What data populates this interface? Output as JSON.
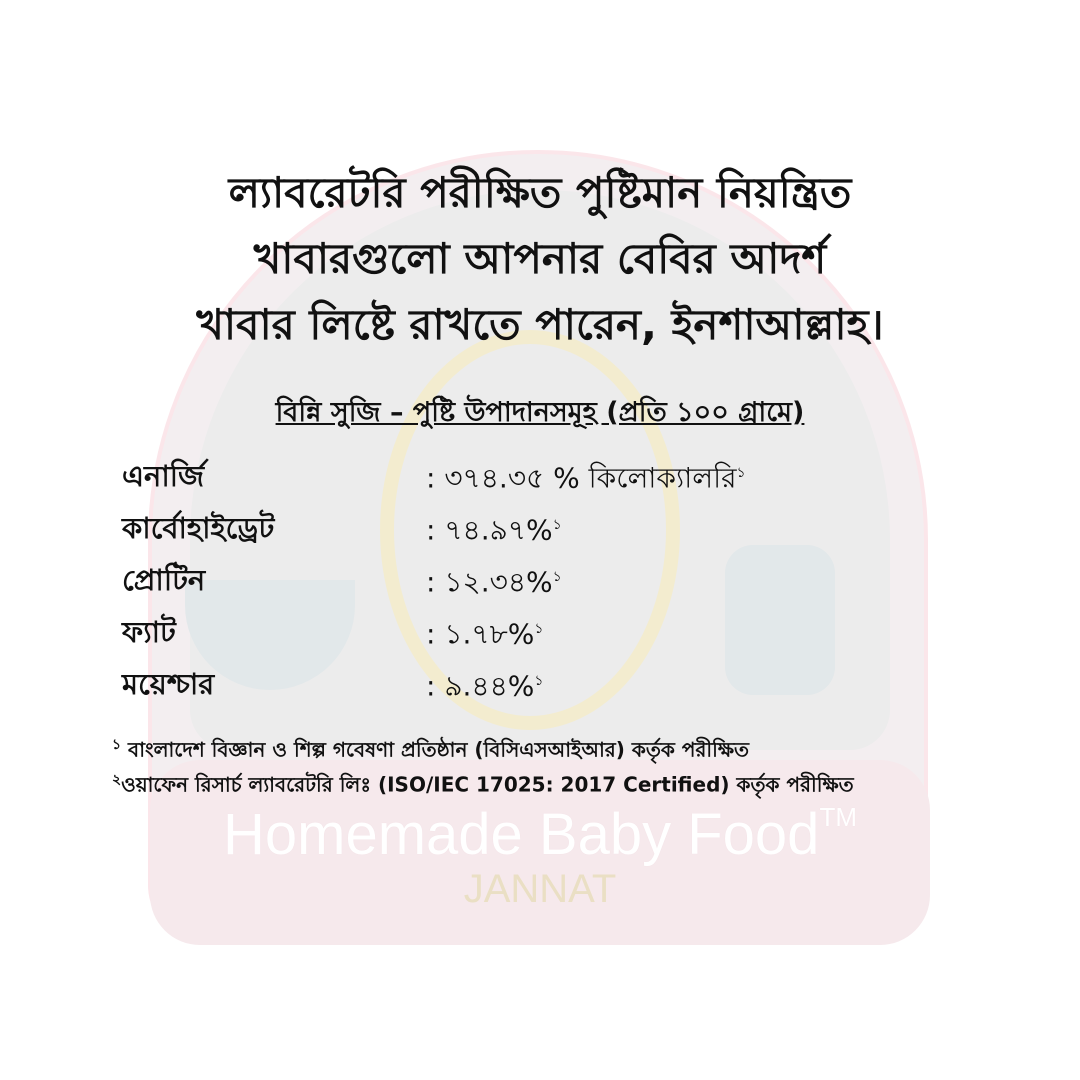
{
  "headline": [
    "ল্যাবরেটরি পরীক্ষিত পুষ্টিমান নিয়ন্ত্রিত",
    "খাবারগুলো আপনার বেবির আদর্শ",
    "খাবার লিষ্টে রাখতে পারেন, ইনশাআল্লাহ।"
  ],
  "subtitle": "বিন্নি সুজি – পুষ্টি উপাদানসমূহ (প্রতি ১০০ গ্রামে)",
  "nutrients": [
    {
      "name": "এনার্জি",
      "value": ": ৩৭৪.৩৫ % কিলোক্যালরি",
      "ref": "১"
    },
    {
      "name": "কার্বোহাইড্রেট",
      "value": ": ৭৪.৯৭%",
      "ref": "১"
    },
    {
      "name": "প্রোটিন",
      "value": ": ১২.৩৪%",
      "ref": "১"
    },
    {
      "name": "ফ্যাট",
      "value": ": ১.৭৮%",
      "ref": "১"
    },
    {
      "name": "ময়েশ্চার",
      "value": ": ৯.৪৪%",
      "ref": "১"
    }
  ],
  "footnotes": [
    {
      "mark": "১",
      "text": " বাংলাদেশ বিজ্ঞান ও শিল্প গবেষণা প্রতিষ্ঠান (বিসিএসআইআর) কর্তৃক পরীক্ষিত"
    },
    {
      "mark": "২",
      "text": "ওয়াফেন রিসার্চ ল্যাবরেটরি লিঃ (ISO/IEC 17025: 2017 Certified) কর্তৃক পরীক্ষিত"
    }
  ],
  "watermark": {
    "brand": "JANNAT",
    "tagline": "Homemade Baby Food",
    "tm": "TM"
  }
}
